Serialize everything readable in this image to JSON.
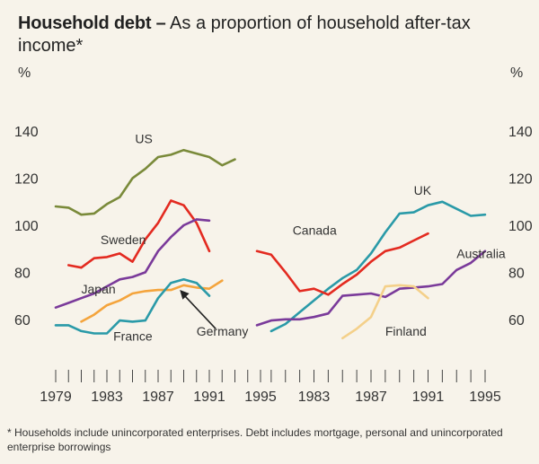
{
  "title_bold": "Household debt –",
  "title_rest": "As a proportion of household after-tax income*",
  "footnote": "* Households include unincorporated enterprises.  Debt includes mortgage, personal and unincorporated enterprise borrowings",
  "chart_data": {
    "type": "line",
    "y_unit_left": "%",
    "y_unit_right": "%",
    "ylim": [
      50,
      150
    ],
    "yticks": [
      60,
      80,
      100,
      120,
      140
    ],
    "grid": false,
    "panels": [
      {
        "name": "left",
        "xlim": [
          1979,
          1995
        ],
        "xticks": [
          1979,
          1983,
          1987,
          1991,
          1995
        ],
        "series": [
          {
            "name": "US",
            "color": "#7a8a3a",
            "x": [
              1979,
              1980,
              1981,
              1982,
              1983,
              1984,
              1985,
              1986,
              1987,
              1988,
              1989,
              1990,
              1991,
              1992,
              1993
            ],
            "y": [
              108,
              107.5,
              104.5,
              105,
              109,
              112,
              120,
              124,
              129,
              130,
              132,
              130.5,
              129,
              125.5,
              128
            ],
            "label_x": 1985.2,
            "label_y": 135
          },
          {
            "name": "Sweden",
            "color": "#e32a20",
            "x": [
              1980,
              1981,
              1982,
              1983,
              1984,
              1985,
              1986,
              1987,
              1988,
              1989,
              1990,
              1991
            ],
            "y": [
              83,
              82,
              86,
              86.5,
              88,
              84.5,
              94,
              101,
              110.5,
              108.5,
              101,
              89
            ],
            "label_x": 1982.5,
            "label_y": 92
          },
          {
            "name": "Japan",
            "color": "#7a3a9a",
            "x": [
              1979,
              1980,
              1981,
              1982,
              1983,
              1984,
              1985,
              1986,
              1987,
              1988,
              1989,
              1990,
              1991
            ],
            "y": [
              65,
              67,
              69,
              71,
              74,
              77,
              78,
              80,
              89,
              95,
              100,
              102.5,
              102
            ],
            "label_x": 1981,
            "label_y": 71
          },
          {
            "name": "Germany",
            "color": "#f4a43c",
            "x": [
              1981,
              1982,
              1983,
              1984,
              1985,
              1986,
              1987,
              1988,
              1989,
              1990,
              1991,
              1992
            ],
            "y": [
              59,
              62,
              66,
              68,
              71,
              72,
              72.5,
              72.5,
              74.5,
              73.5,
              73,
              76.5
            ],
            "label_x": 1990,
            "label_y": 53
          },
          {
            "name": "France",
            "color": "#2a9aa8",
            "x": [
              1979,
              1980,
              1981,
              1982,
              1983,
              1984,
              1985,
              1986,
              1987,
              1988,
              1989,
              1990,
              1991
            ],
            "y": [
              57.5,
              57.5,
              55,
              54,
              54,
              59.5,
              59,
              59.5,
              69,
              75.5,
              77,
              75.5,
              70
            ],
            "label_x": 1983.5,
            "label_y": 51
          }
        ]
      },
      {
        "name": "right",
        "xlim": [
          1979,
          1995
        ],
        "xticks": [
          1983,
          1987,
          1991,
          1995
        ],
        "series": [
          {
            "name": "UK",
            "color": "#2a9aa8",
            "x": [
              1980,
              1981,
              1982,
              1983,
              1984,
              1985,
              1986,
              1987,
              1988,
              1989,
              1990,
              1991,
              1992,
              1993,
              1994,
              1995
            ],
            "y": [
              55,
              58,
              63,
              68,
              73,
              77.5,
              81,
              88,
              97,
              105,
              105.5,
              108.5,
              110,
              107,
              104,
              104.5
            ],
            "label_x": 1990,
            "label_y": 113
          },
          {
            "name": "Canada",
            "color": "#e32a20",
            "x": [
              1979,
              1980,
              1981,
              1982,
              1983,
              1984,
              1985,
              1986,
              1987,
              1988,
              1989,
              1990,
              1991
            ],
            "y": [
              89,
              87.5,
              80,
              72,
              73,
              70.5,
              75,
              79,
              84.5,
              89,
              90.5,
              93.5,
              96.5
            ],
            "label_x": 1981.5,
            "label_y": 96
          },
          {
            "name": "Australia",
            "color": "#7a3a9a",
            "x": [
              1979,
              1980,
              1981,
              1982,
              1983,
              1984,
              1985,
              1986,
              1987,
              1988,
              1989,
              1990,
              1991,
              1992,
              1993,
              1994,
              1995
            ],
            "y": [
              57.5,
              59.5,
              60,
              60,
              61,
              62.5,
              70,
              70.5,
              71,
              69.5,
              73,
              73.5,
              74,
              75,
              81,
              84,
              89
            ],
            "label_x": 1993,
            "label_y": 86
          },
          {
            "name": "Finland",
            "color": "#f4d08a",
            "x": [
              1985,
              1986,
              1987,
              1988,
              1989,
              1990,
              1991
            ],
            "y": [
              52,
              56,
              61,
              74,
              74.5,
              74,
              69
            ],
            "label_x": 1988,
            "label_y": 53
          }
        ]
      }
    ],
    "annotation": {
      "text": "Germany",
      "target": "Germany series",
      "arrow": true
    }
  }
}
